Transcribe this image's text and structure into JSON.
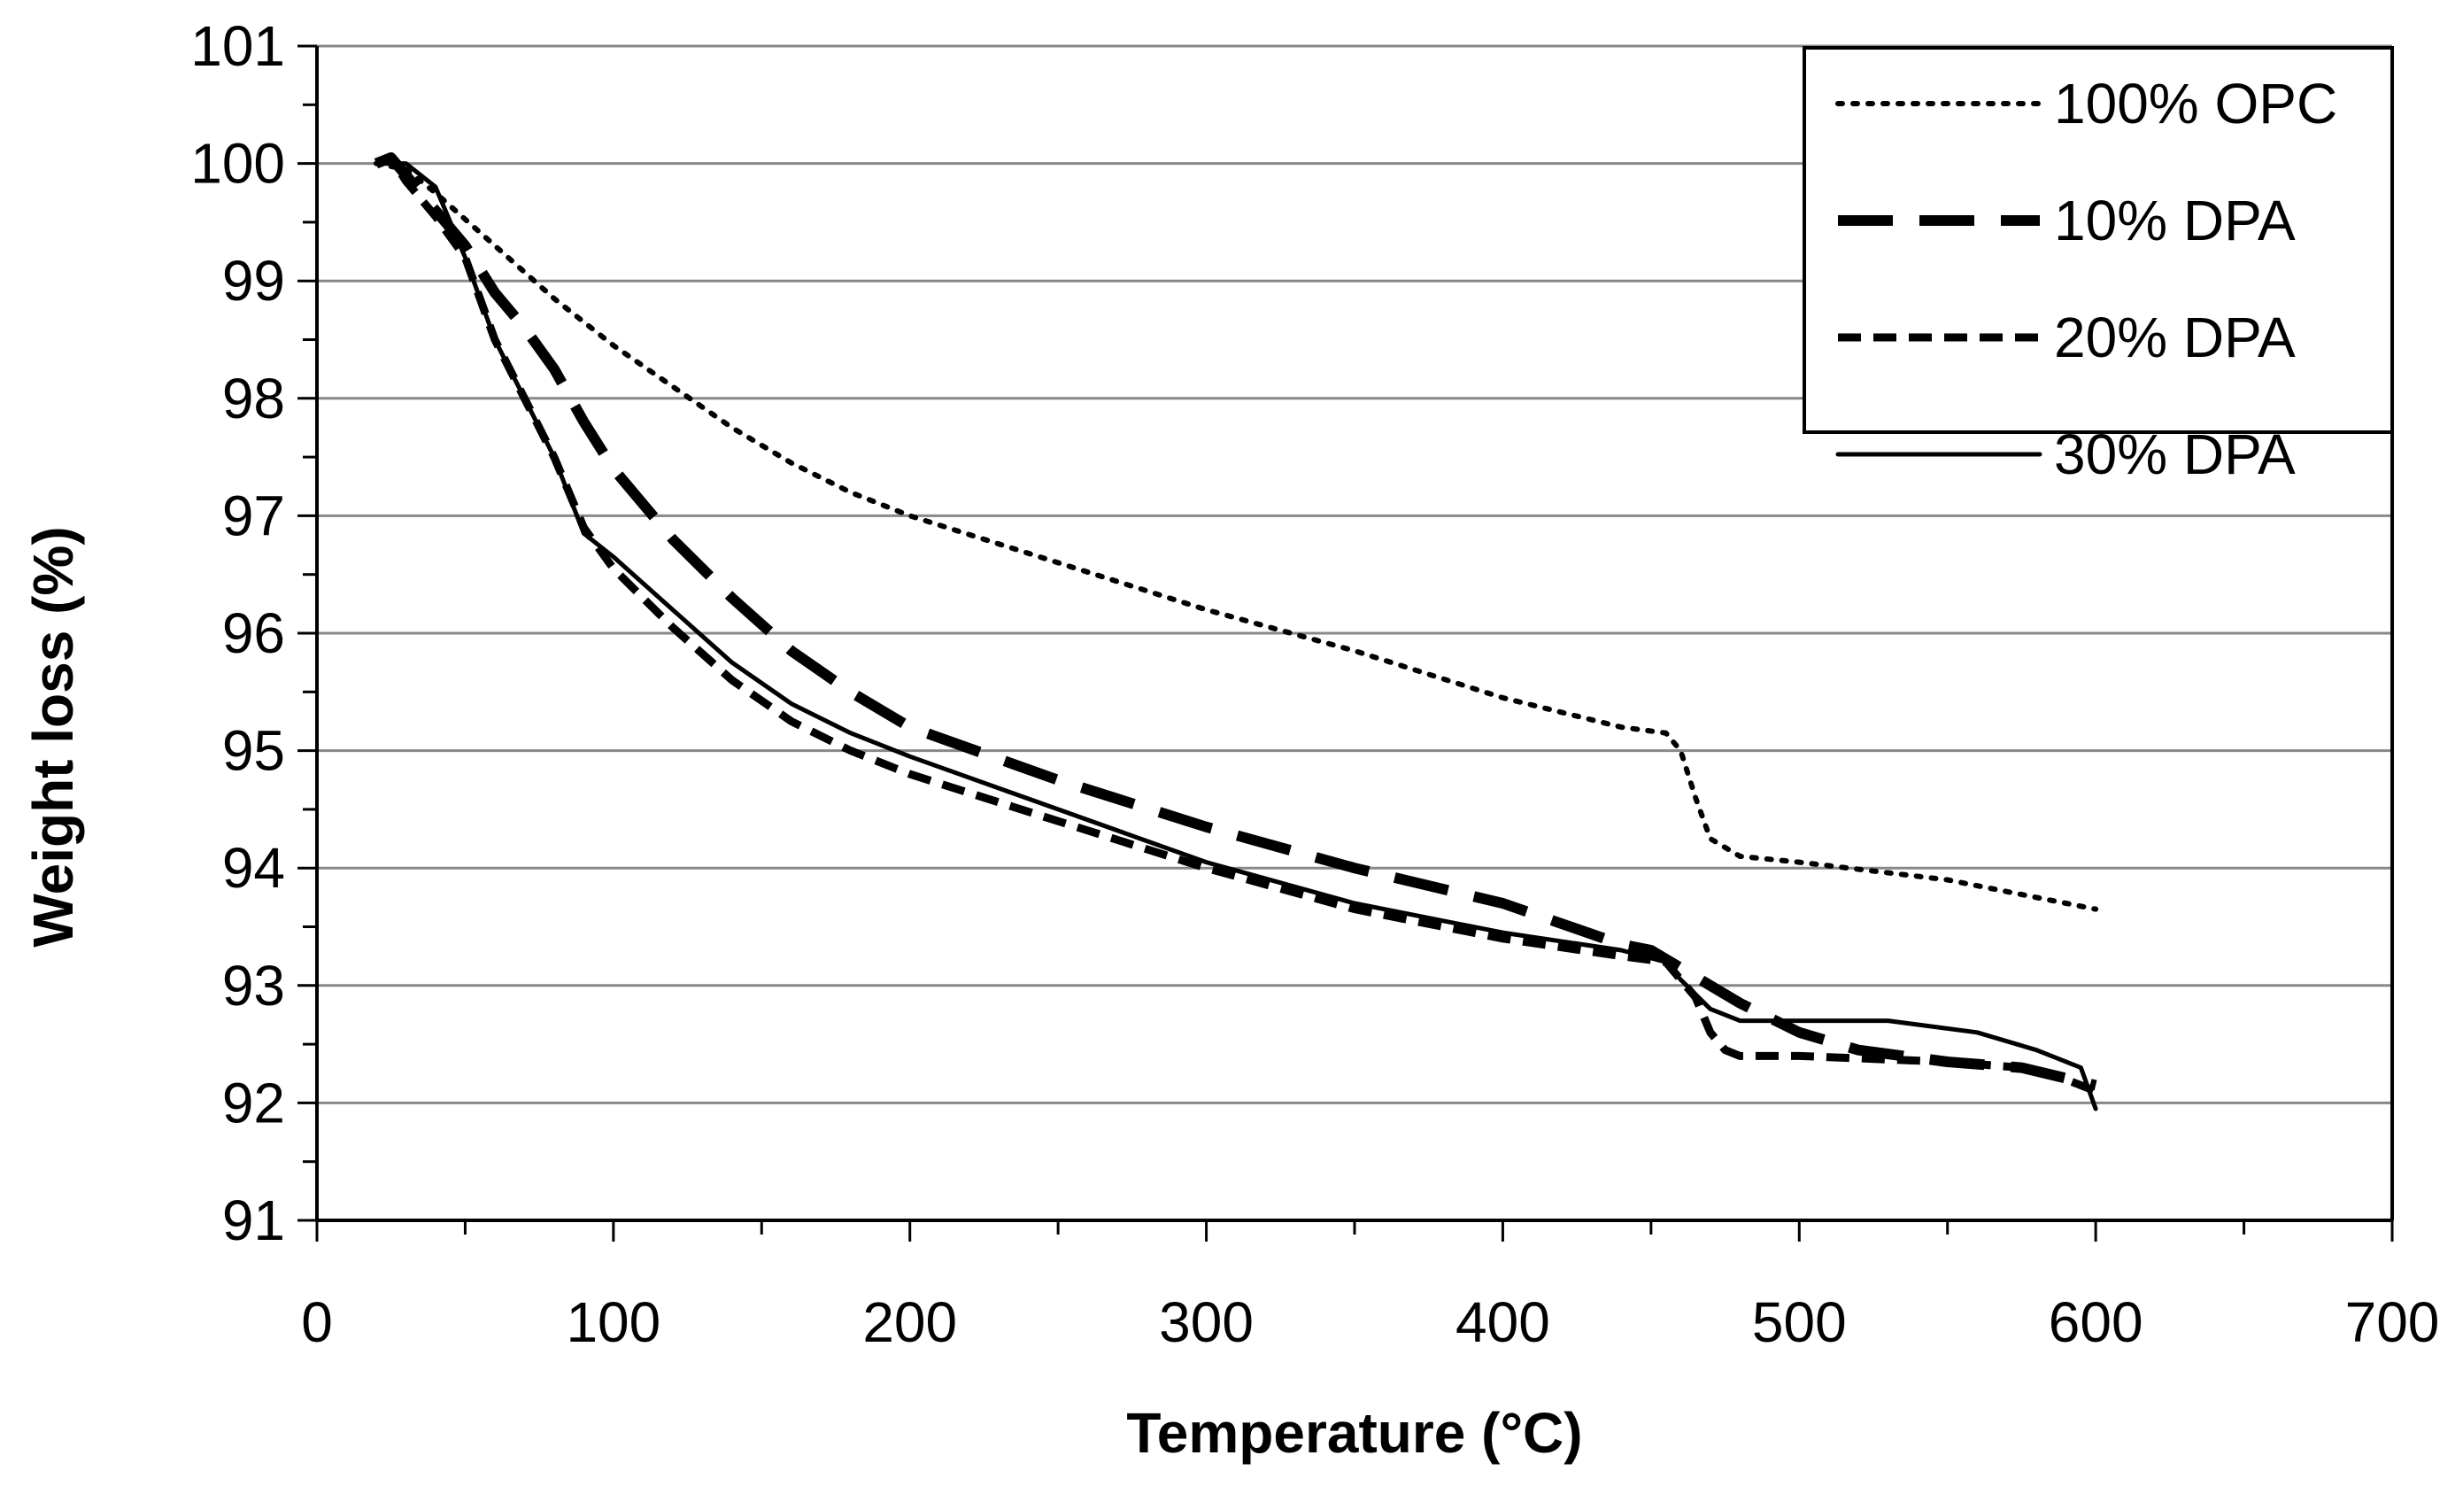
{
  "chart_data": {
    "type": "line",
    "title": "",
    "xlabel": "Temperature (°C)",
    "ylabel": "Weight loss (%)",
    "xlim": [
      0,
      700
    ],
    "ylim": [
      91,
      101
    ],
    "xticks": [
      "0",
      "100",
      "200",
      "300",
      "400",
      "500",
      "600",
      "700"
    ],
    "yticks": [
      "91",
      "92",
      "93",
      "94",
      "95",
      "96",
      "97",
      "98",
      "99",
      "100",
      "101"
    ],
    "grid": "horizontal",
    "legend_position": "top-right",
    "series": [
      {
        "name": "100% OPC",
        "style": "dotted",
        "x": [
          20,
          30,
          40,
          60,
          80,
          100,
          120,
          140,
          160,
          180,
          200,
          250,
          300,
          350,
          400,
          440,
          455,
          460,
          465,
          470,
          480,
          500,
          550,
          600
        ],
        "y": [
          100,
          99.95,
          99.75,
          99.3,
          98.85,
          98.45,
          98.1,
          97.75,
          97.45,
          97.2,
          97.0,
          96.6,
          96.2,
          95.85,
          95.45,
          95.2,
          95.15,
          95.0,
          94.6,
          94.25,
          94.1,
          94.05,
          93.9,
          93.65
        ]
      },
      {
        "name": "10% DPA",
        "style": "long-dash",
        "x": [
          20,
          25,
          30,
          40,
          50,
          60,
          70,
          80,
          90,
          100,
          120,
          140,
          160,
          180,
          200,
          250,
          300,
          350,
          400,
          440,
          450,
          460,
          470,
          480,
          500,
          520,
          550,
          575,
          600
        ],
        "y": [
          100,
          100.05,
          99.9,
          99.6,
          99.3,
          98.9,
          98.6,
          98.25,
          97.8,
          97.4,
          96.8,
          96.3,
          95.85,
          95.5,
          95.2,
          94.75,
          94.35,
          94.0,
          93.7,
          93.35,
          93.3,
          93.15,
          93.0,
          92.85,
          92.6,
          92.45,
          92.35,
          92.3,
          92.15
        ]
      },
      {
        "name": "20% DPA",
        "style": "dashed",
        "x": [
          20,
          25,
          30,
          40,
          50,
          60,
          70,
          80,
          90,
          100,
          120,
          140,
          160,
          180,
          200,
          250,
          300,
          350,
          400,
          440,
          455,
          465,
          470,
          475,
          480,
          500,
          550,
          575,
          590,
          600
        ],
        "y": [
          100,
          100.05,
          99.85,
          99.55,
          99.2,
          98.5,
          98.0,
          97.5,
          96.9,
          96.55,
          96.05,
          95.6,
          95.25,
          95.0,
          94.8,
          94.4,
          94.0,
          93.65,
          93.4,
          93.25,
          93.2,
          92.9,
          92.6,
          92.45,
          92.4,
          92.4,
          92.35,
          92.3,
          92.2,
          92.1
        ]
      },
      {
        "name": "30% DPA",
        "style": "solid",
        "x": [
          20,
          30,
          40,
          50,
          60,
          70,
          80,
          90,
          100,
          120,
          140,
          160,
          180,
          200,
          250,
          300,
          350,
          400,
          440,
          455,
          460,
          470,
          480,
          500,
          530,
          560,
          580,
          595,
          600
        ],
        "y": [
          100,
          100,
          99.8,
          99.2,
          98.5,
          98.0,
          97.5,
          96.85,
          96.65,
          96.2,
          95.75,
          95.4,
          95.15,
          94.95,
          94.5,
          94.05,
          93.7,
          93.45,
          93.3,
          93.2,
          93.05,
          92.8,
          92.7,
          92.7,
          92.7,
          92.6,
          92.45,
          92.3,
          91.95
        ]
      }
    ]
  },
  "colors": {
    "line": "#000000",
    "grid": "#888888",
    "background": "#ffffff"
  }
}
